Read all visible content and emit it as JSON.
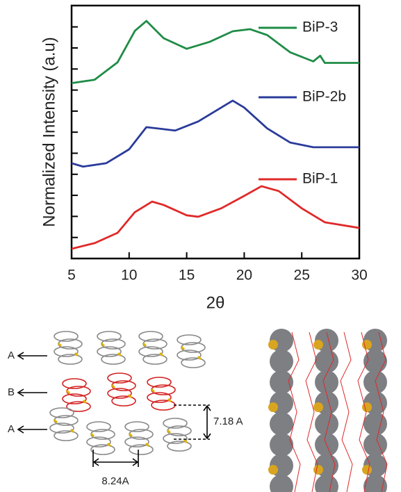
{
  "chart_data": {
    "type": "line",
    "x_label": "2θ",
    "y_label": "Normalized Intensity (a.u)",
    "xlim": [
      5,
      30
    ],
    "xticks": [
      5,
      10,
      15,
      20,
      25,
      30
    ],
    "ylim": [
      0,
      12
    ],
    "series": [
      {
        "name": "BiP-3",
        "color": "#1e8c46",
        "x": [
          5,
          7,
          9,
          10.5,
          11.5,
          13,
          15,
          17,
          19,
          20.5,
          22,
          24,
          26,
          26.6,
          27,
          30
        ],
        "values": [
          8.32,
          8.48,
          9.31,
          10.8,
          11.27,
          10.45,
          9.95,
          10.28,
          10.78,
          10.88,
          10.6,
          9.78,
          9.35,
          9.62,
          9.28,
          9.28
        ]
      },
      {
        "name": "BiP-2b",
        "color": "#2a3b9a",
        "x": [
          5,
          6,
          8,
          10,
          11.5,
          12.5,
          14,
          16,
          18,
          19,
          20,
          22,
          24,
          26,
          28,
          30
        ],
        "values": [
          4.52,
          4.36,
          4.52,
          5.18,
          6.23,
          6.17,
          6.07,
          6.5,
          7.16,
          7.49,
          7.16,
          6.17,
          5.5,
          5.28,
          5.28,
          5.28
        ]
      },
      {
        "name": "BiP-1",
        "color": "#e02828",
        "x": [
          5,
          7,
          9,
          10.5,
          12,
          13,
          15,
          16,
          18,
          20,
          21.5,
          23,
          25,
          27,
          30
        ],
        "values": [
          0.46,
          0.73,
          1.22,
          2.2,
          2.7,
          2.54,
          2.05,
          1.98,
          2.38,
          2.97,
          3.43,
          3.2,
          2.38,
          1.72,
          1.45
        ]
      }
    ]
  },
  "structure": {
    "layers": [
      "A",
      "B",
      "A"
    ],
    "dimensions": [
      "7.18 A",
      "8.24A"
    ]
  }
}
